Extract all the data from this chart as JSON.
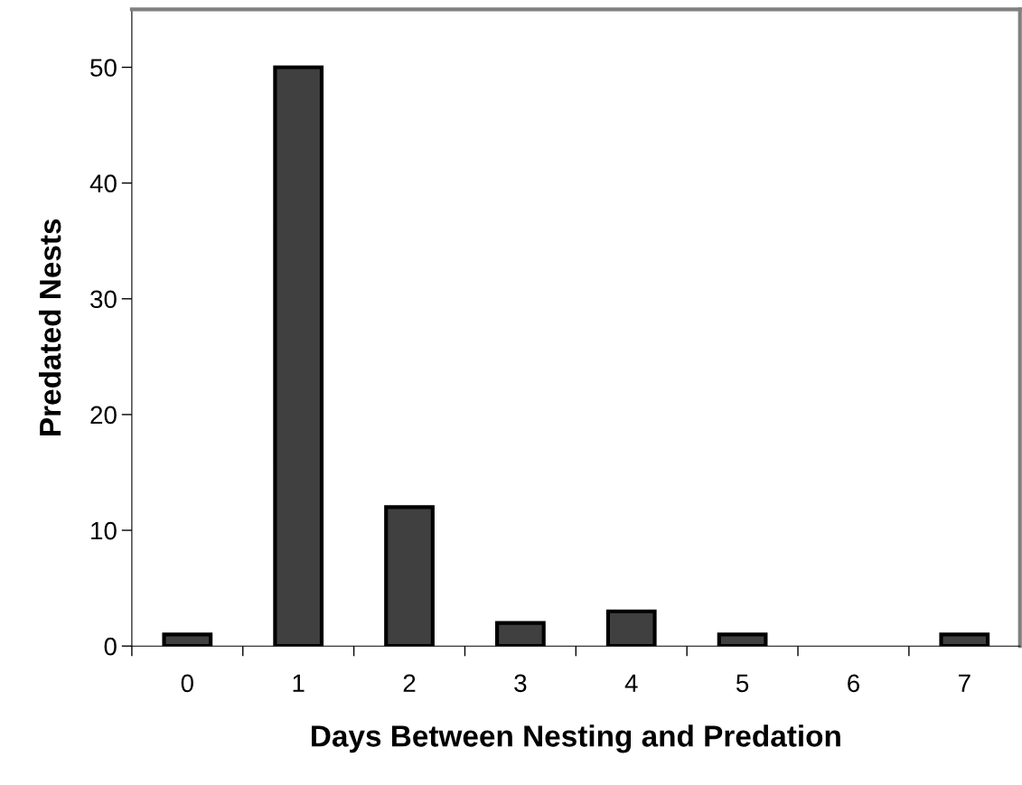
{
  "chart_data": {
    "type": "bar",
    "xlabel": "Days Between Nesting and Predation",
    "ylabel": "Predated Nests",
    "categories": [
      "0",
      "1",
      "2",
      "3",
      "4",
      "5",
      "6",
      "7"
    ],
    "values": [
      1,
      50,
      12,
      2,
      3,
      1,
      0,
      1
    ],
    "color": "#404040",
    "ylim": [
      0,
      55
    ],
    "yticks": [
      0,
      10,
      20,
      30,
      40,
      50
    ],
    "grid": false
  }
}
